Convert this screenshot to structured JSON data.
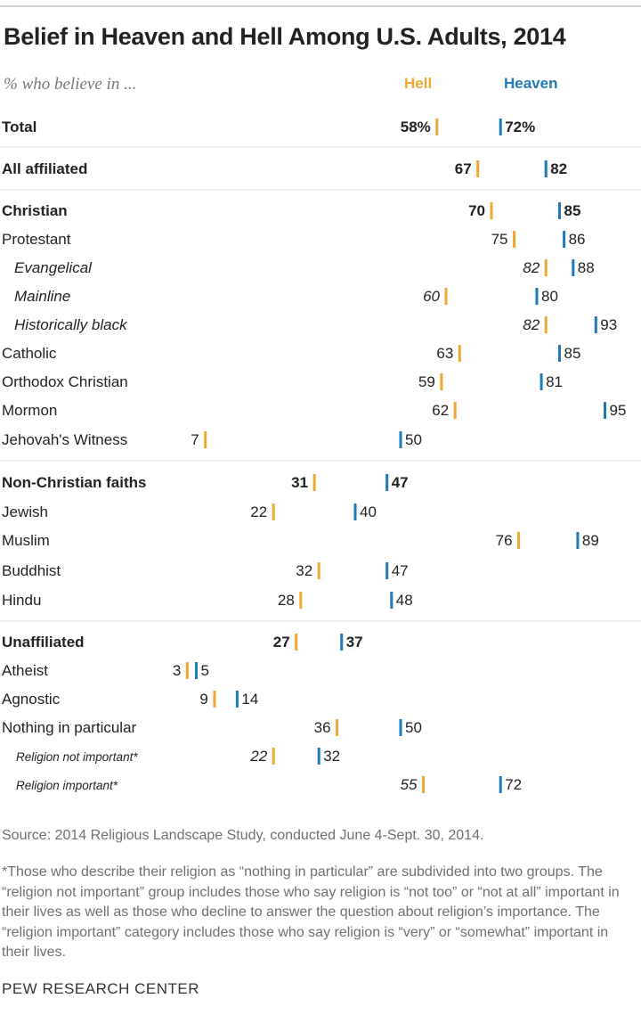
{
  "title": "Belief in Heaven and Hell Among U.S. Adults, 2014",
  "subtitle": "% who believe in ...",
  "legend": {
    "hell": "Hell",
    "heaven": "Heaven"
  },
  "colors": {
    "hell": "#F0A830",
    "heaven": "#1F7AB8",
    "divider": "#d9d9d9",
    "text": "#222222",
    "muted": "#6f6f6f"
  },
  "source": "Source: 2014 Religious Landscape Study, conducted June 4-Sept. 30, 2014.",
  "note": "*Those who describe their religion as “nothing in particular” are subdivided into two groups. The “religion not important” group includes those who say religion is “not too” or “not at all” important in their lives as well as those who decline to answer the question about religion’s importance. The “religion important” category includes those who say religion is “very” or “somewhat” important in their lives.",
  "logo": "PEW RESEARCH CENTER",
  "chart_data": {
    "type": "dot",
    "title": "Belief in Heaven and Hell Among U.S. Adults, 2014",
    "subtitle": "% who believe in ...",
    "unit": "%",
    "series": [
      {
        "name": "Hell",
        "key": "hell"
      },
      {
        "name": "Heaven",
        "key": "heaven"
      }
    ],
    "rows": [
      {
        "label": "Total",
        "style": "bold",
        "hell": 58,
        "heaven": 72,
        "hell_text": "58%",
        "heaven_text": "72%"
      },
      {
        "label": "All affiliated",
        "style": "bold",
        "hell": 67,
        "heaven": 82
      },
      {
        "label": "Christian",
        "style": "bold",
        "hell": 70,
        "heaven": 85
      },
      {
        "label": "Protestant",
        "style": "normal",
        "hell": 75,
        "heaven": 86
      },
      {
        "label": "Evangelical",
        "style": "italic",
        "hell": 82,
        "heaven": 88
      },
      {
        "label": "Mainline",
        "style": "italic",
        "hell": 60,
        "heaven": 80
      },
      {
        "label": "Historically black",
        "style": "italic",
        "hell": 82,
        "heaven": 93
      },
      {
        "label": "Catholic",
        "style": "normal",
        "hell": 63,
        "heaven": 85
      },
      {
        "label": "Orthodox Christian",
        "style": "normal",
        "hell": 59,
        "heaven": 81
      },
      {
        "label": "Mormon",
        "style": "normal",
        "hell": 62,
        "heaven": 95
      },
      {
        "label": "Jehovah's Witness",
        "style": "normal",
        "hell": 7,
        "heaven": 50
      },
      {
        "label": "Non-Christian faiths",
        "style": "bold",
        "hell": 31,
        "heaven": 47
      },
      {
        "label": "Jewish",
        "style": "normal",
        "hell": 22,
        "heaven": 40
      },
      {
        "label": "Muslim",
        "style": "normal",
        "hell": 76,
        "heaven": 89
      },
      {
        "label": "Buddhist",
        "style": "normal",
        "hell": 32,
        "heaven": 47
      },
      {
        "label": "Hindu",
        "style": "normal",
        "hell": 28,
        "heaven": 48
      },
      {
        "label": "Unaffiliated",
        "style": "bold",
        "hell": 27,
        "heaven": 37
      },
      {
        "label": "Atheist",
        "style": "normal",
        "hell": 3,
        "heaven": 5
      },
      {
        "label": "Agnostic",
        "style": "normal",
        "hell": 9,
        "heaven": 14
      },
      {
        "label": "Nothing in particular",
        "style": "normal",
        "hell": 36,
        "heaven": 50
      },
      {
        "label": "Religion not important*",
        "style": "small-italic",
        "hell": 22,
        "heaven": 32
      },
      {
        "label": "Religion important*",
        "style": "small-italic",
        "hell": 55,
        "heaven": 72
      }
    ]
  }
}
